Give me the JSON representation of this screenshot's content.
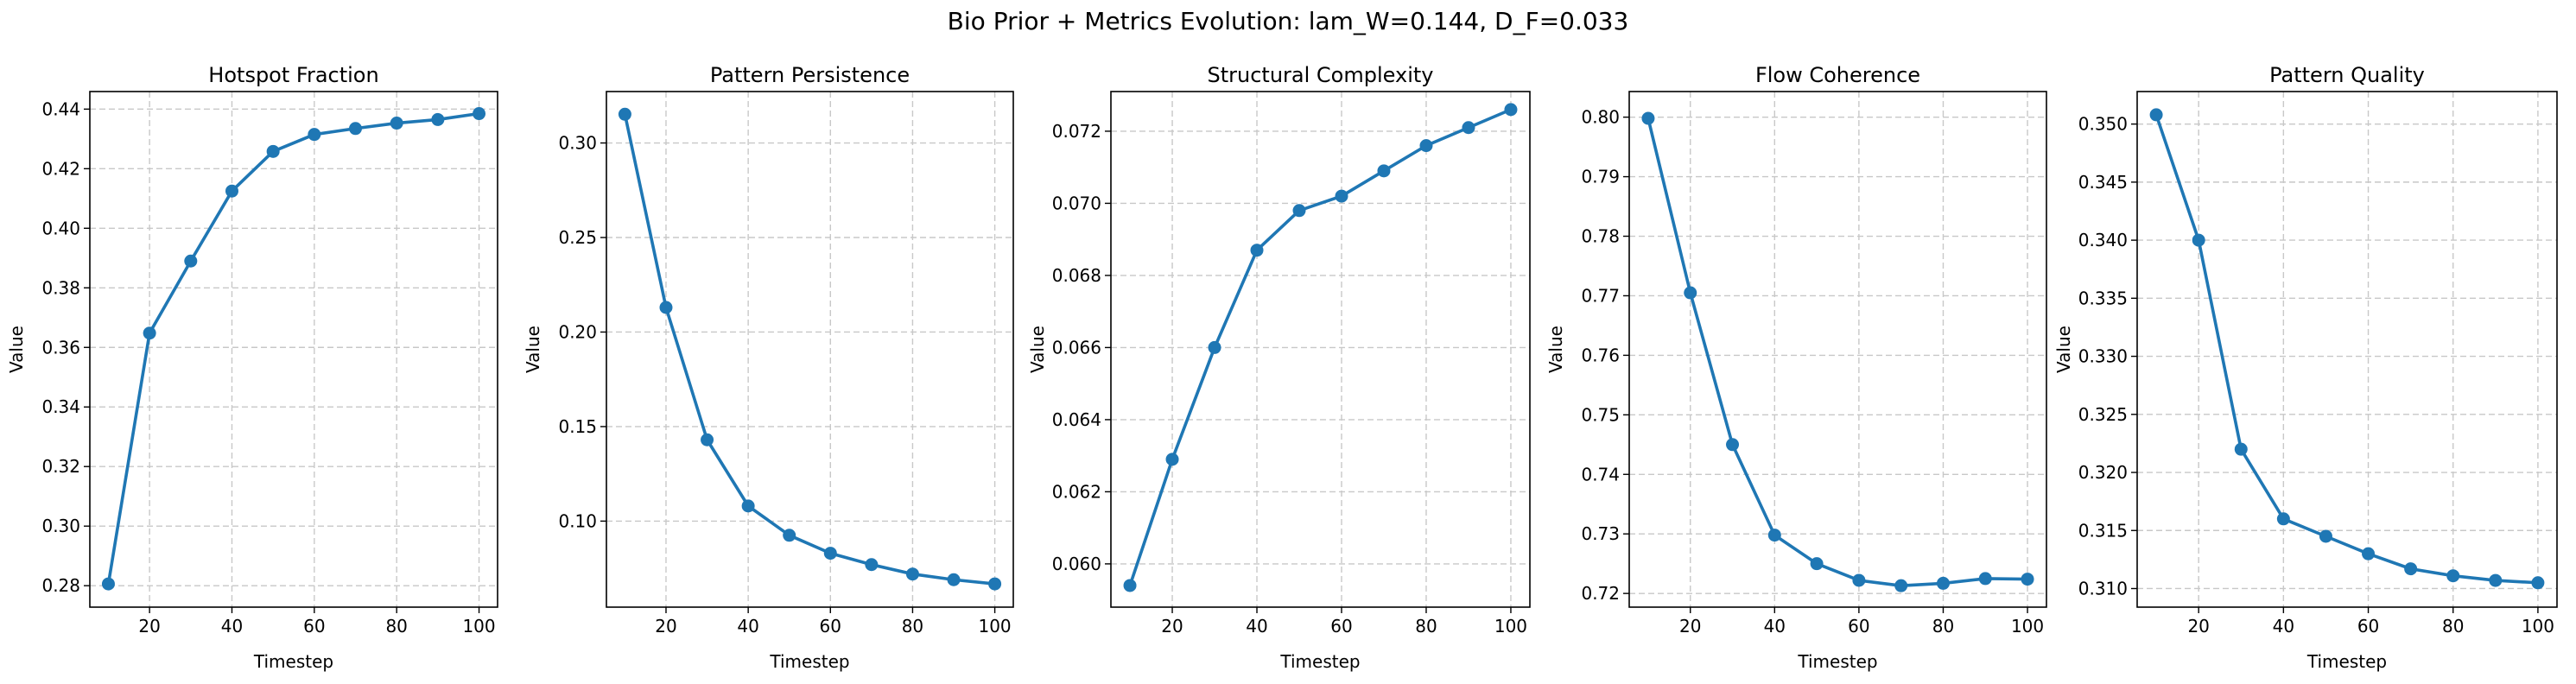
{
  "figure": {
    "title": "Bio Prior + Metrics Evolution: lam_W=0.144, D_F=0.033"
  },
  "style": {
    "line_color": "#1f77b4",
    "grid_color": "#c8c8c8",
    "axis_color": "#000000"
  },
  "chart_data": [
    {
      "type": "line",
      "title": "Hotspot Fraction",
      "xlabel": "Timestep",
      "ylabel": "Value",
      "xlim": [
        5.5,
        104.5
      ],
      "ylim": [
        0.2728,
        0.4459
      ],
      "xticks": [
        20,
        40,
        60,
        80,
        100
      ],
      "yticks": [
        0.28,
        0.3,
        0.32,
        0.34,
        0.36,
        0.38,
        0.4,
        0.42,
        0.44
      ],
      "ytick_labels": [
        "0.28",
        "0.30",
        "0.32",
        "0.34",
        "0.36",
        "0.38",
        "0.40",
        "0.42",
        "0.44"
      ],
      "grid": true,
      "markers": true,
      "x": [
        10,
        20,
        30,
        40,
        50,
        60,
        70,
        80,
        90,
        100
      ],
      "series": [
        {
          "values": [
            0.2806,
            0.3648,
            0.389,
            0.4125,
            0.4258,
            0.4315,
            0.4335,
            0.4353,
            0.4365,
            0.4385
          ]
        }
      ]
    },
    {
      "type": "line",
      "title": "Pattern Persistence",
      "xlabel": "Timestep",
      "ylabel": "Value",
      "xlim": [
        5.5,
        104.5
      ],
      "ylim": [
        0.0545,
        0.3272
      ],
      "xticks": [
        20,
        40,
        60,
        80,
        100
      ],
      "yticks": [
        0.1,
        0.15,
        0.2,
        0.25,
        0.3
      ],
      "ytick_labels": [
        "0.10",
        "0.15",
        "0.20",
        "0.25",
        "0.30"
      ],
      "grid": true,
      "markers": true,
      "x": [
        10,
        20,
        30,
        40,
        50,
        60,
        70,
        80,
        90,
        100
      ],
      "series": [
        {
          "values": [
            0.3152,
            0.213,
            0.143,
            0.108,
            0.0925,
            0.083,
            0.077,
            0.072,
            0.069,
            0.0668
          ]
        }
      ]
    },
    {
      "type": "line",
      "title": "Structural Complexity",
      "xlabel": "Timestep",
      "ylabel": "Value",
      "xlim": [
        5.5,
        104.5
      ],
      "ylim": [
        0.0588,
        0.0731
      ],
      "xticks": [
        20,
        40,
        60,
        80,
        100
      ],
      "yticks": [
        0.06,
        0.062,
        0.064,
        0.066,
        0.068,
        0.07,
        0.072
      ],
      "ytick_labels": [
        "0.060",
        "0.062",
        "0.064",
        "0.066",
        "0.068",
        "0.070",
        "0.072"
      ],
      "grid": true,
      "markers": true,
      "x": [
        10,
        20,
        30,
        40,
        50,
        60,
        70,
        80,
        90,
        100
      ],
      "series": [
        {
          "values": [
            0.0594,
            0.0629,
            0.066,
            0.0687,
            0.0698,
            0.0702,
            0.0709,
            0.0716,
            0.0721,
            0.0726
          ]
        }
      ]
    },
    {
      "type": "line",
      "title": "Flow Coherence",
      "xlabel": "Timestep",
      "ylabel": "Value",
      "xlim": [
        5.5,
        104.5
      ],
      "ylim": [
        0.7177,
        0.8043
      ],
      "xticks": [
        20,
        40,
        60,
        80,
        100
      ],
      "yticks": [
        0.72,
        0.73,
        0.74,
        0.75,
        0.76,
        0.77,
        0.78,
        0.79,
        0.8
      ],
      "ytick_labels": [
        "0.72",
        "0.73",
        "0.74",
        "0.75",
        "0.76",
        "0.77",
        "0.78",
        "0.79",
        "0.80"
      ],
      "grid": true,
      "markers": true,
      "x": [
        10,
        20,
        30,
        40,
        50,
        60,
        70,
        80,
        90,
        100
      ],
      "series": [
        {
          "values": [
            0.7998,
            0.7705,
            0.745,
            0.7298,
            0.725,
            0.7222,
            0.7213,
            0.7217,
            0.7225,
            0.7224
          ]
        }
      ]
    },
    {
      "type": "line",
      "title": "Pattern Quality",
      "xlabel": "Timestep",
      "ylabel": "Value",
      "xlim": [
        5.5,
        104.5
      ],
      "ylim": [
        0.3084,
        0.3528
      ],
      "xticks": [
        20,
        40,
        60,
        80,
        100
      ],
      "yticks": [
        0.31,
        0.315,
        0.32,
        0.325,
        0.33,
        0.335,
        0.34,
        0.345,
        0.35
      ],
      "ytick_labels": [
        "0.310",
        "0.315",
        "0.320",
        "0.325",
        "0.330",
        "0.335",
        "0.340",
        "0.345",
        "0.350"
      ],
      "grid": true,
      "markers": true,
      "x": [
        10,
        20,
        30,
        40,
        50,
        60,
        70,
        80,
        90,
        100
      ],
      "series": [
        {
          "values": [
            0.3508,
            0.34,
            0.322,
            0.316,
            0.3145,
            0.313,
            0.3117,
            0.3111,
            0.3107,
            0.3105
          ]
        }
      ]
    }
  ]
}
